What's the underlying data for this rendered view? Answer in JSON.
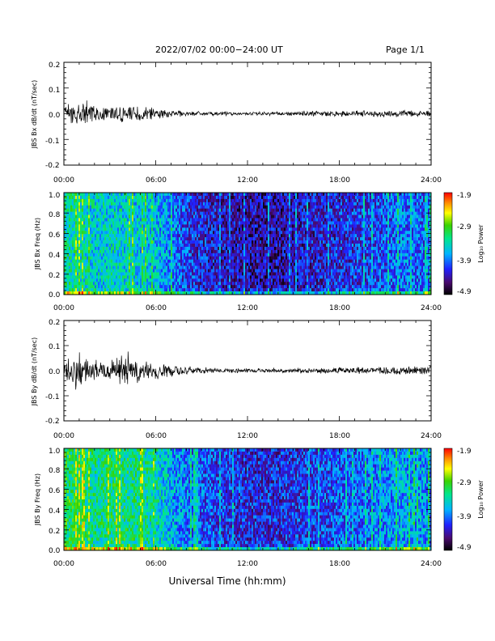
{
  "header": {
    "title": "2022/07/02  00:00−24:00 UT",
    "page": "Page 1/1"
  },
  "x_axis_label": "Universal Time (hh:mm)",
  "x_tick_labels": [
    "00:00",
    "06:00",
    "12:00",
    "18:00",
    "24:00"
  ],
  "colorbar": {
    "label": "Log₁₀ Power",
    "ticks": [
      "-1.9",
      "-2.9",
      "-3.9",
      "-4.9"
    ]
  },
  "chart_data": [
    {
      "type": "line",
      "ylabel": "JBS Bx dB/dt (nT/sec)",
      "x_range_hours": [
        0,
        24
      ],
      "ylim": [
        -0.2,
        0.2
      ],
      "y_tick_labels": [
        "0.2",
        "0.1",
        "0.0",
        "-0.1",
        "-0.2"
      ],
      "x_hours": [
        0,
        1,
        1.5,
        2,
        3,
        4,
        5,
        6,
        7,
        8,
        10,
        12,
        14,
        16,
        18,
        20,
        22,
        24
      ],
      "envelope_nT_per_sec": [
        0.04,
        0.05,
        0.06,
        0.04,
        0.03,
        0.04,
        0.035,
        0.025,
        0.015,
        0.012,
        0.009,
        0.008,
        0.008,
        0.012,
        0.013,
        0.014,
        0.015,
        0.015
      ]
    },
    {
      "type": "heatmap",
      "ylabel": "JBS Bx Freq (Hz)",
      "x_range_hours": [
        0,
        24
      ],
      "ylim": [
        0,
        1.0
      ],
      "y_tick_labels": [
        "1.0",
        "0.8",
        "0.6",
        "0.4",
        "0.2",
        "0.0"
      ],
      "color_range_log10_power": [
        -4.9,
        -1.9
      ],
      "x_hours": [
        0,
        2,
        4,
        6,
        8,
        10,
        12,
        14,
        16,
        18,
        20,
        22,
        24
      ],
      "mean_log10_power": [
        -3.3,
        -3.5,
        -3.5,
        -3.6,
        -4.1,
        -4.3,
        -4.4,
        -4.4,
        -4.3,
        -4.2,
        -4.1,
        -3.9,
        -4.0
      ]
    },
    {
      "type": "line",
      "ylabel": "JBS By dB/dt (nT/sec)",
      "x_range_hours": [
        0,
        24
      ],
      "ylim": [
        -0.2,
        0.2
      ],
      "y_tick_labels": [
        "0.2",
        "0.1",
        "0.0",
        "-0.1",
        "-0.2"
      ],
      "x_hours": [
        0,
        1,
        1.5,
        2,
        3,
        4,
        5,
        6,
        7,
        8,
        10,
        12,
        14,
        16,
        18,
        20,
        22,
        24
      ],
      "envelope_nT_per_sec": [
        0.05,
        0.09,
        0.06,
        0.05,
        0.04,
        0.09,
        0.05,
        0.04,
        0.03,
        0.02,
        0.012,
        0.01,
        0.01,
        0.012,
        0.014,
        0.016,
        0.02,
        0.02
      ]
    },
    {
      "type": "heatmap",
      "ylabel": "JBS By Freq (Hz)",
      "x_range_hours": [
        0,
        24
      ],
      "ylim": [
        0,
        1.0
      ],
      "y_tick_labels": [
        "1.0",
        "0.8",
        "0.6",
        "0.4",
        "0.2",
        "0.0"
      ],
      "color_range_log10_power": [
        -4.9,
        -1.9
      ],
      "x_hours": [
        0,
        2,
        4,
        6,
        8,
        10,
        12,
        14,
        16,
        18,
        20,
        22,
        24
      ],
      "mean_log10_power": [
        -3.1,
        -3.3,
        -3.2,
        -3.4,
        -3.9,
        -4.1,
        -4.2,
        -4.2,
        -4.1,
        -4.0,
        -3.9,
        -3.7,
        -3.8
      ]
    }
  ]
}
